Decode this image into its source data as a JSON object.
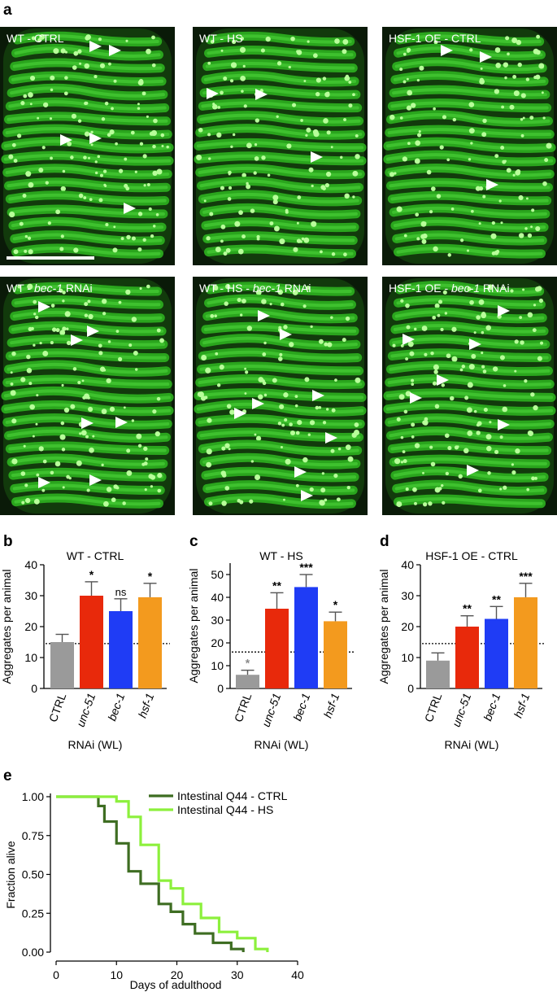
{
  "panel_letters": [
    "a",
    "b",
    "c",
    "d",
    "e"
  ],
  "micrographs": [
    {
      "label": "WT - CTRL",
      "gene": "",
      "suffix": ""
    },
    {
      "label": "WT - HS",
      "gene": "",
      "suffix": ""
    },
    {
      "label": "HSF-1 OE - CTRL",
      "gene": "",
      "suffix": ""
    },
    {
      "label": "WT - ",
      "gene": "bec-1",
      "suffix": " RNAi"
    },
    {
      "label": "WT - HS - ",
      "gene": "bec-1",
      "suffix": " RNAi"
    },
    {
      "label": "HSF-1 OE - ",
      "gene": "bec-1",
      "suffix": " RNAi"
    }
  ],
  "colors": {
    "ctrl": "#9a9a9a",
    "unc51": "#e8290b",
    "bec1": "#1f3cf5",
    "hsf1": "#f39a1e",
    "survival_ctrl": "#3e6d22",
    "survival_hs": "#8cf03c",
    "fluor": "#3ce62a"
  },
  "chart_data": [
    {
      "type": "bar",
      "title": "WT - CTRL",
      "xlabel": "RNAi (WL)",
      "ylabel": "Aggregates per animal",
      "categories": [
        "CTRL",
        "unc-51",
        "bec-1",
        "hsf-1"
      ],
      "values": [
        15,
        30,
        25,
        29.5
      ],
      "errors": [
        2.5,
        4.5,
        4,
        4.5
      ],
      "significance": [
        "",
        "*",
        "ns",
        "*"
      ],
      "yticks": [
        0,
        10,
        20,
        30,
        40
      ],
      "ylim": [
        0,
        40
      ],
      "reference_line": 14.5
    },
    {
      "type": "bar",
      "title": "WT - HS",
      "xlabel": "RNAi (WL)",
      "ylabel": "Aggregates per animal",
      "categories": [
        "CTRL",
        "unc-51",
        "bec-1",
        "hsf-1"
      ],
      "values": [
        6,
        35,
        44.5,
        29.5
      ],
      "errors": [
        2,
        7,
        5.5,
        4
      ],
      "significance": [
        "*",
        "**",
        "***",
        "*"
      ],
      "yticks": [
        0,
        10,
        20,
        30,
        40,
        50
      ],
      "ylim": [
        0,
        55
      ],
      "reference_line": 16
    },
    {
      "type": "bar",
      "title": "HSF-1 OE - CTRL",
      "xlabel": "RNAi (WL)",
      "ylabel": "Aggregates per animal",
      "categories": [
        "CTRL",
        "unc-51",
        "bec-1",
        "hsf-1"
      ],
      "values": [
        9,
        20,
        22.5,
        29.5
      ],
      "errors": [
        2.5,
        3.5,
        4,
        4.5
      ],
      "significance": [
        "",
        "**",
        "**",
        "***"
      ],
      "yticks": [
        0,
        10,
        20,
        30,
        40
      ],
      "ylim": [
        0,
        40
      ],
      "reference_line": 14.5
    },
    {
      "type": "line",
      "xlabel": "Days of adulthood",
      "ylabel": "Fraction alive",
      "xticks": [
        0,
        10,
        20,
        30,
        40
      ],
      "yticks": [
        "0.00",
        "0.25",
        "0.50",
        "0.75",
        "1.00"
      ],
      "xlim": [
        0,
        40
      ],
      "ylim": [
        0,
        1
      ],
      "legend": "top-right",
      "series": [
        {
          "name": "Intestinal Q44 - CTRL",
          "x": [
            0,
            5,
            7,
            8,
            10,
            12,
            14,
            17,
            19,
            21,
            23,
            26,
            29,
            31
          ],
          "y": [
            1.0,
            1.0,
            0.94,
            0.84,
            0.7,
            0.52,
            0.44,
            0.31,
            0.26,
            0.18,
            0.12,
            0.06,
            0.02,
            0.0
          ]
        },
        {
          "name": "Intestinal Q44 - HS",
          "x": [
            0,
            5,
            10,
            12,
            14,
            17,
            19,
            21,
            24,
            27,
            30,
            33,
            35
          ],
          "y": [
            1.0,
            1.0,
            0.97,
            0.87,
            0.69,
            0.46,
            0.41,
            0.31,
            0.22,
            0.13,
            0.09,
            0.02,
            0.0
          ]
        }
      ]
    }
  ]
}
